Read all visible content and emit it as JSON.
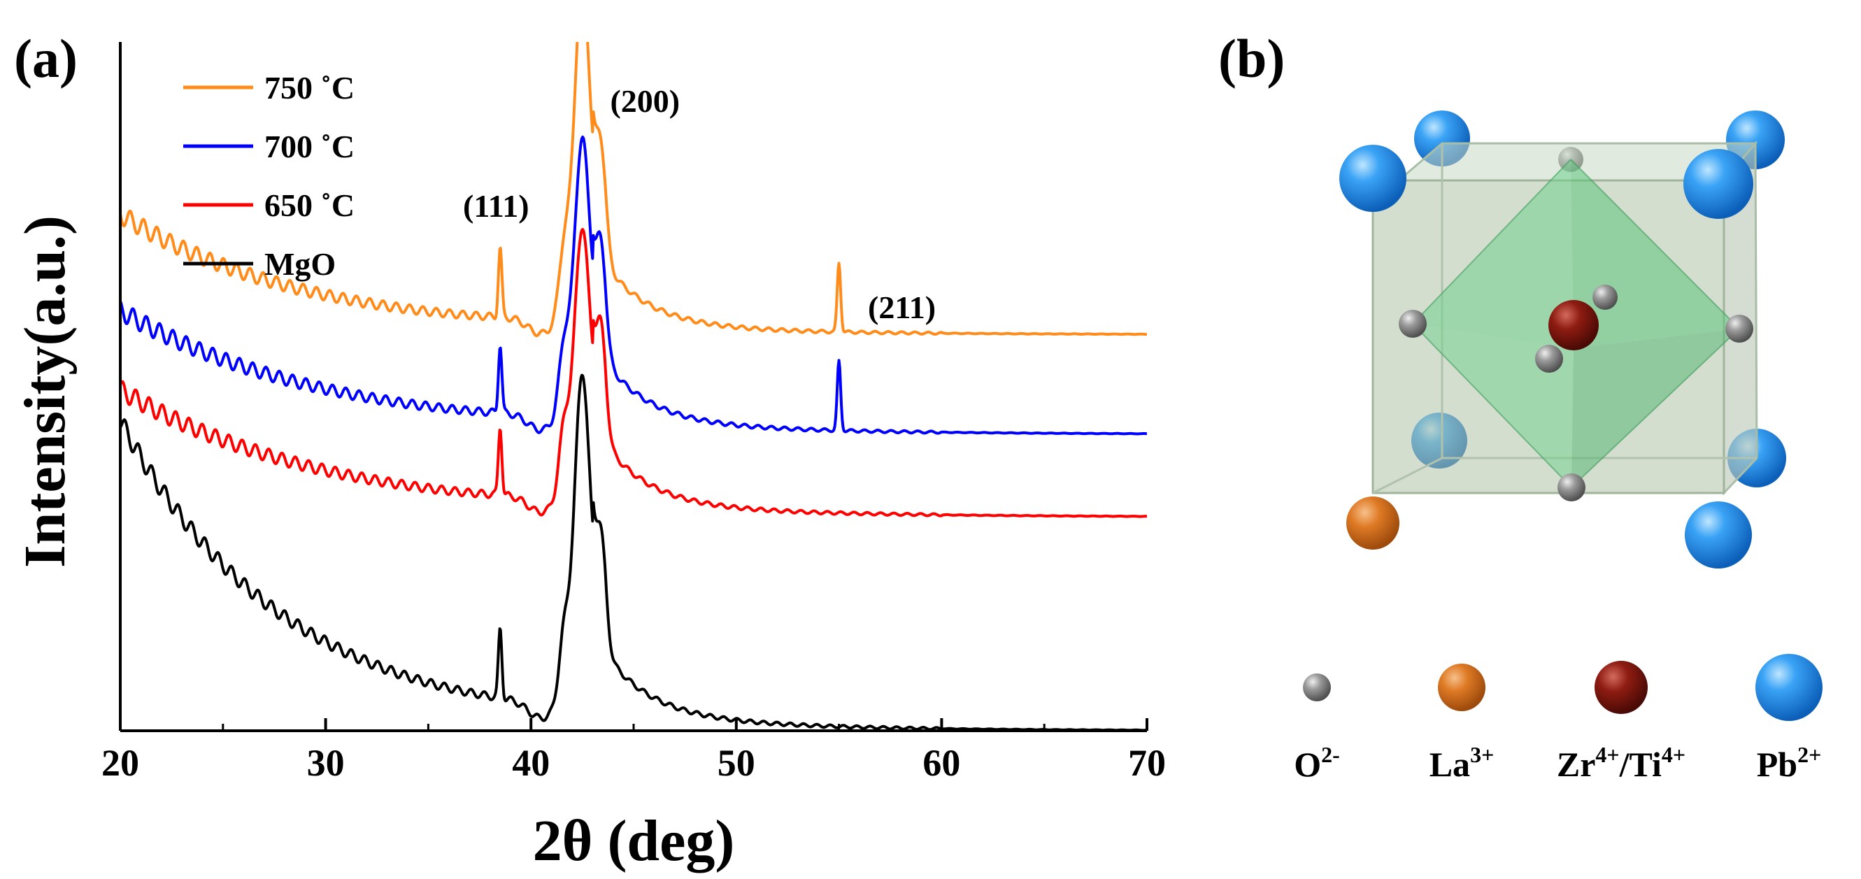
{
  "panel_a": {
    "label": "(a)"
  },
  "panel_b": {
    "label": "(b)"
  },
  "chart_data": {
    "type": "line",
    "title": "",
    "xlabel": "2θ (deg)",
    "ylabel": "Intensity(a.u.)",
    "xlim": [
      20,
      70
    ],
    "xticks": [
      20,
      30,
      40,
      50,
      60,
      70
    ],
    "x_tick_labels": [
      "20",
      "30",
      "40",
      "50",
      "60",
      "70"
    ],
    "ylim": [
      0,
      10
    ],
    "y_ticks_shown": false,
    "legend_position": "top-left",
    "peak_labels": [
      {
        "text": "(111)",
        "x": 38.3
      },
      {
        "text": "(200)",
        "x": 43.0
      },
      {
        "text": "(211)",
        "x": 55.0
      }
    ],
    "series": [
      {
        "name": "750 ˚C",
        "color": "#ff8c1a",
        "offset": 5.75,
        "start_level": 1.75,
        "end_level": 0.0,
        "decay_x": 9.0,
        "reflections": [
          38.5,
          55.0
        ],
        "peak_200": 4.8
      },
      {
        "name": "700 ˚C",
        "color": "#0000ff",
        "offset": 4.5,
        "start_level": 1.6,
        "end_level": -0.2,
        "decay_x": 10.0,
        "reflections": [
          38.5,
          55.0
        ],
        "peak_200": 3.9
      },
      {
        "name": "650 ˚C",
        "color": "#ff0000",
        "offset": 3.1,
        "start_level": 1.85,
        "end_level": 0.0,
        "decay_x": 10.0,
        "reflections": [
          38.5
        ],
        "peak_200": 3.8
      },
      {
        "name": "MgO",
        "color": "#000000",
        "offset": 0.1,
        "start_level": 4.4,
        "end_level": -0.1,
        "decay_x": 8.0,
        "reflections": [
          38.5
        ],
        "peak_200": 4.7
      }
    ]
  },
  "legend_b": [
    {
      "ion_base": "O",
      "ion_sup": "2-",
      "color": "#8c8c8c"
    },
    {
      "ion_base": "La",
      "ion_sup": "3+",
      "color": "#d86f1c"
    },
    {
      "ion_base": "Zr",
      "ion_sup": "4+",
      "ion_base2": "/Ti",
      "ion_sup2": "4+",
      "color": "#8e1c12"
    },
    {
      "ion_base": "Pb",
      "ion_sup": "2+",
      "color": "#1f88e6"
    }
  ]
}
